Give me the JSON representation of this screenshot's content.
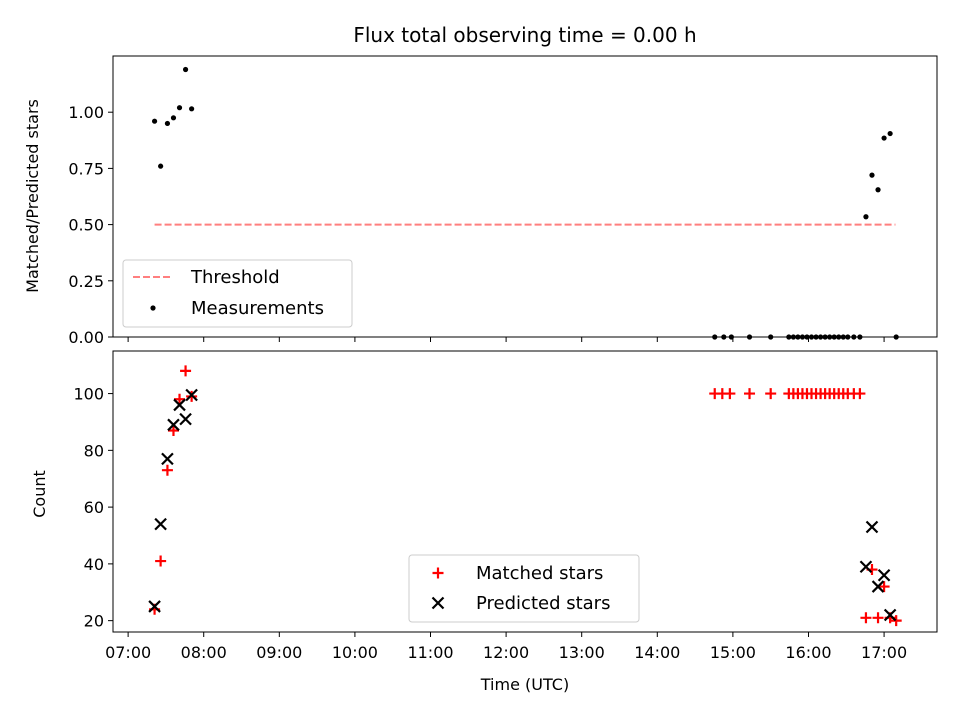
{
  "chart_data": [
    {
      "type": "scatter",
      "title": "Flux total observing time = 0.00 h",
      "xlabel": "",
      "ylabel": "Matched/Predicted stars",
      "xlim": [
        6.8,
        17.7
      ],
      "ylim": [
        0.0,
        1.25
      ],
      "yticks": [
        0.0,
        0.25,
        0.5,
        0.75,
        1.0
      ],
      "ytick_labels": [
        "0.00",
        "0.25",
        "0.50",
        "0.75",
        "1.00"
      ],
      "legend_position": "lower-left",
      "series": [
        {
          "name": "Threshold",
          "style": "dashed-line",
          "color": "#ff7f7f",
          "points": [
            [
              7.35,
              0.5
            ],
            [
              17.15,
              0.5
            ]
          ]
        },
        {
          "name": "Measurements",
          "style": "dot",
          "color": "#000000",
          "points": [
            [
              7.35,
              0.96
            ],
            [
              7.43,
              0.76
            ],
            [
              7.52,
              0.95
            ],
            [
              7.6,
              0.975
            ],
            [
              7.68,
              1.02
            ],
            [
              7.76,
              1.19
            ],
            [
              7.84,
              1.015
            ],
            [
              14.76,
              0.0
            ],
            [
              14.88,
              0.0
            ],
            [
              14.98,
              0.0
            ],
            [
              15.22,
              0.0
            ],
            [
              15.5,
              0.0
            ],
            [
              15.74,
              0.0
            ],
            [
              15.8,
              0.0
            ],
            [
              15.86,
              0.0
            ],
            [
              15.92,
              0.0
            ],
            [
              15.98,
              0.0
            ],
            [
              16.04,
              0.0
            ],
            [
              16.1,
              0.0
            ],
            [
              16.16,
              0.0
            ],
            [
              16.22,
              0.0
            ],
            [
              16.28,
              0.0
            ],
            [
              16.34,
              0.0
            ],
            [
              16.4,
              0.0
            ],
            [
              16.46,
              0.0
            ],
            [
              16.52,
              0.0
            ],
            [
              16.6,
              0.0
            ],
            [
              16.68,
              0.0
            ],
            [
              16.76,
              0.535
            ],
            [
              16.84,
              0.72
            ],
            [
              16.92,
              0.655
            ],
            [
              17.0,
              0.885
            ],
            [
              17.08,
              0.905
            ],
            [
              17.16,
              0.0
            ]
          ]
        }
      ]
    },
    {
      "type": "scatter",
      "title": "",
      "xlabel": "Time (UTC)",
      "ylabel": "Count",
      "xlim": [
        6.8,
        17.7
      ],
      "ylim": [
        16,
        115
      ],
      "yticks": [
        20,
        40,
        60,
        80,
        100
      ],
      "ytick_labels": [
        "20",
        "40",
        "60",
        "80",
        "100"
      ],
      "xticks": [
        7,
        8,
        9,
        10,
        11,
        12,
        13,
        14,
        15,
        16,
        17
      ],
      "xtick_labels": [
        "07:00",
        "08:00",
        "09:00",
        "10:00",
        "11:00",
        "12:00",
        "13:00",
        "14:00",
        "15:00",
        "16:00",
        "17:00"
      ],
      "legend_position": "lower-center",
      "series": [
        {
          "name": "Matched stars",
          "style": "plus",
          "color": "#ff0000",
          "points": [
            [
              7.35,
              24
            ],
            [
              7.43,
              41
            ],
            [
              7.52,
              73
            ],
            [
              7.6,
              87
            ],
            [
              7.68,
              98
            ],
            [
              7.76,
              108
            ],
            [
              7.84,
              99
            ],
            [
              14.76,
              100
            ],
            [
              14.86,
              100
            ],
            [
              14.96,
              100
            ],
            [
              15.22,
              100
            ],
            [
              15.5,
              100
            ],
            [
              15.74,
              100
            ],
            [
              15.8,
              100
            ],
            [
              15.86,
              100
            ],
            [
              15.92,
              100
            ],
            [
              15.98,
              100
            ],
            [
              16.04,
              100
            ],
            [
              16.1,
              100
            ],
            [
              16.16,
              100
            ],
            [
              16.22,
              100
            ],
            [
              16.28,
              100
            ],
            [
              16.34,
              100
            ],
            [
              16.4,
              100
            ],
            [
              16.46,
              100
            ],
            [
              16.52,
              100
            ],
            [
              16.6,
              100
            ],
            [
              16.68,
              100
            ],
            [
              16.76,
              21
            ],
            [
              16.84,
              38
            ],
            [
              16.92,
              21
            ],
            [
              17.0,
              32
            ],
            [
              17.08,
              21
            ],
            [
              17.16,
              20
            ]
          ]
        },
        {
          "name": "Predicted stars",
          "style": "x",
          "color": "#000000",
          "points": [
            [
              7.35,
              25
            ],
            [
              7.43,
              54
            ],
            [
              7.52,
              77
            ],
            [
              7.6,
              89
            ],
            [
              7.68,
              96
            ],
            [
              7.76,
              91
            ],
            [
              7.84,
              99.5
            ],
            [
              16.76,
              39
            ],
            [
              16.84,
              53
            ],
            [
              16.92,
              32
            ],
            [
              17.0,
              36
            ],
            [
              17.08,
              22
            ]
          ]
        }
      ]
    }
  ]
}
